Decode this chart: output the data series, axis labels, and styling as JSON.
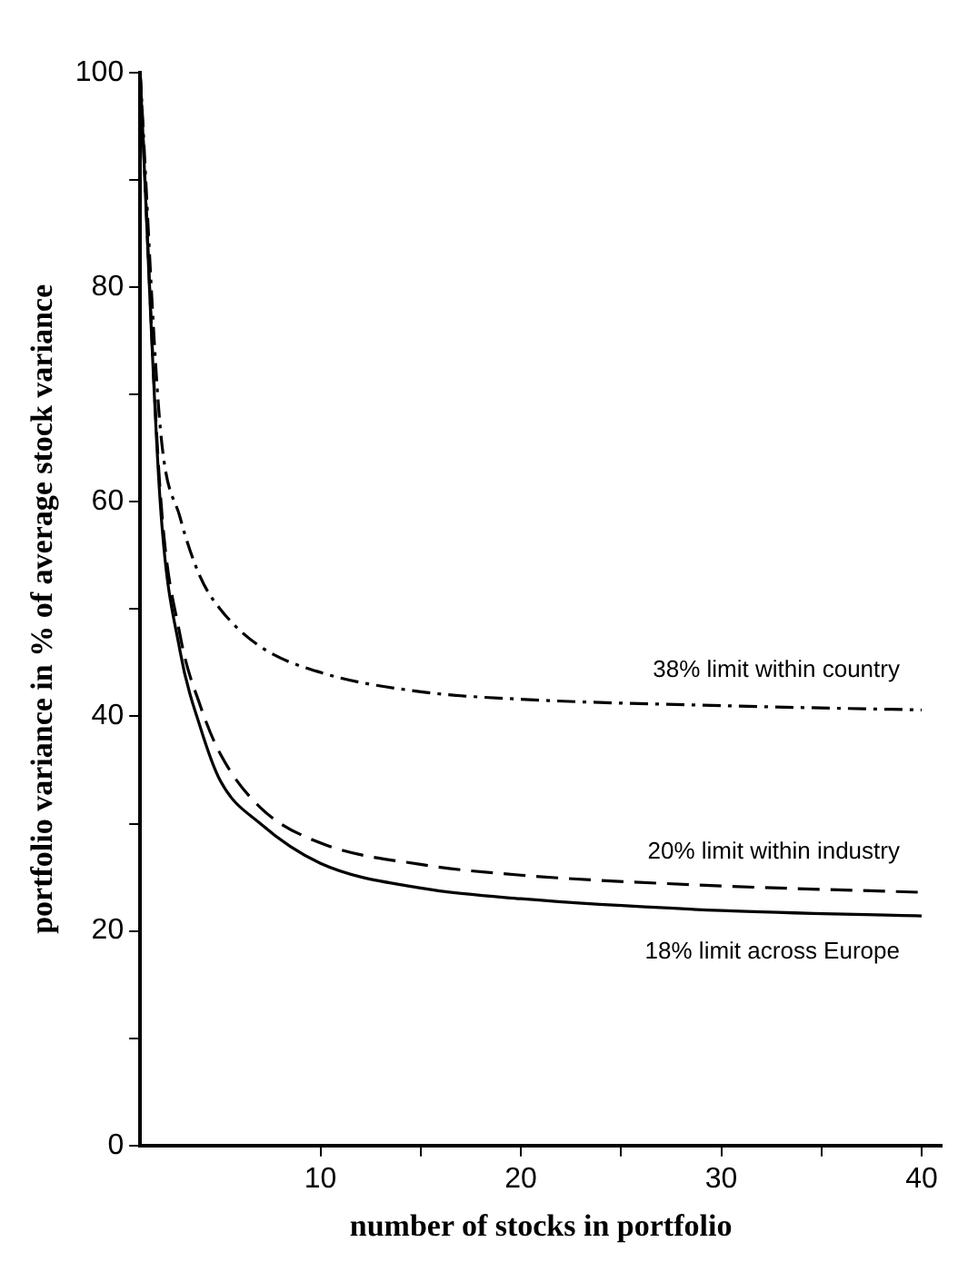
{
  "chart_data": {
    "type": "line",
    "xlabel": "number of stocks in portfolio",
    "ylabel": "portfolio variance in % of average stock variance",
    "xlim": [
      1,
      41
    ],
    "ylim": [
      0,
      100
    ],
    "xticks": [
      10,
      {
        "value": 15,
        "label": null
      },
      20,
      {
        "value": 25,
        "label": null
      },
      30,
      {
        "value": 35,
        "label": null
      },
      40
    ],
    "yticks": [
      0,
      {
        "value": 10,
        "label": null
      },
      20,
      {
        "value": 30,
        "label": null
      },
      40,
      {
        "value": 50,
        "label": null
      },
      60,
      {
        "value": 70,
        "label": null
      },
      80,
      {
        "value": 90,
        "label": null
      },
      100
    ],
    "grid": false,
    "legend": false,
    "marker": "none",
    "series": [
      {
        "name": "38% limit within country",
        "color": "#000000",
        "line_style": "dashdot",
        "x": [
          1,
          2,
          3,
          4,
          5,
          7,
          10,
          15,
          20,
          30,
          40
        ],
        "values": [
          100,
          67,
          58.5,
          53,
          50,
          46.5,
          44.1,
          42.3,
          41.6,
          41,
          40.6
        ]
      },
      {
        "name": "20% limit within industry",
        "color": "#000000",
        "line_style": "dashed",
        "x": [
          1,
          2,
          3,
          4,
          5,
          7,
          10,
          15,
          20,
          30,
          40
        ],
        "values": [
          100,
          61,
          47.5,
          41,
          36.5,
          31.5,
          28.2,
          26.2,
          25.2,
          24.2,
          23.6
        ]
      },
      {
        "name": "18% limit across Europe",
        "color": "#000000",
        "line_style": "solid",
        "x": [
          1,
          2,
          3,
          4,
          5,
          7,
          10,
          15,
          20,
          30,
          40
        ],
        "values": [
          100,
          60,
          46,
          39,
          34,
          30,
          26.3,
          24,
          23,
          21.9,
          21.4
        ]
      }
    ]
  }
}
